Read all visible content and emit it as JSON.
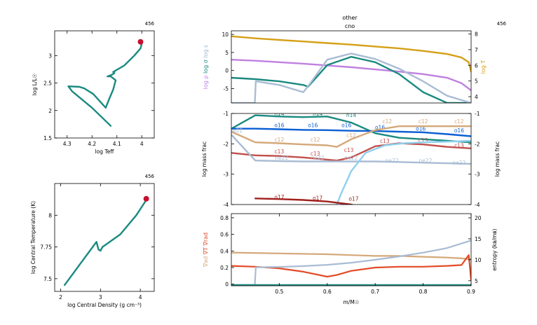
{
  "header": {
    "line1": "other",
    "line2": "cno"
  },
  "chart_data": [
    {
      "id": "hr",
      "type": "line",
      "xlabel": "log Teff",
      "ylabel": "log L/L☉",
      "corner_label": "456",
      "xlim": [
        4.35,
        3.95
      ],
      "ylim": [
        1.5,
        3.45
      ],
      "xticks": [
        4.3,
        4.2,
        4.1,
        4.0
      ],
      "xtick_labels": [
        "4.3",
        "4.2",
        "4.1",
        "4"
      ],
      "yticks": [
        1.5,
        2.0,
        2.5,
        3.0
      ],
      "ytick_labels": [
        "1.5",
        "2",
        "2.5",
        "3"
      ],
      "series": [
        {
          "color": "#1a8a80",
          "x": [
            4.125,
            4.2,
            4.28,
            4.295,
            4.25,
            4.23,
            4.195,
            4.145,
            4.13,
            4.115,
            4.105,
            4.125,
            4.138,
            4.12,
            4.11,
            4.115,
            4.07,
            4.03,
            4.005,
            4.0,
            4.005
          ],
          "y": [
            1.72,
            2.05,
            2.35,
            2.44,
            2.43,
            2.4,
            2.3,
            2.05,
            2.22,
            2.38,
            2.55,
            2.62,
            2.62,
            2.65,
            2.68,
            2.7,
            2.82,
            3.0,
            3.13,
            3.22,
            3.25
          ]
        }
      ],
      "marker": {
        "x": 4.005,
        "y": 3.25,
        "color": "#c8102e"
      }
    },
    {
      "id": "center",
      "type": "line",
      "xlabel": "log Central Density (g cm⁻³)",
      "ylabel": "log Central Temperature (K)",
      "corner_label": "456",
      "xlim": [
        1.85,
        4.35
      ],
      "ylim": [
        7.4,
        8.25
      ],
      "xticks": [
        2,
        3,
        4
      ],
      "xtick_labels": [
        "2",
        "3",
        "4"
      ],
      "yticks": [
        7.5,
        7.75,
        8.0
      ],
      "ytick_labels": [
        "7.5",
        "7.75",
        "8"
      ],
      "series": [
        {
          "color": "#1a8a80",
          "x": [
            2.1,
            2.5,
            2.9,
            2.95,
            3.0,
            3.05,
            3.5,
            3.9,
            4.15
          ],
          "y": [
            7.45,
            7.62,
            7.79,
            7.73,
            7.72,
            7.75,
            7.85,
            8.0,
            8.12
          ]
        }
      ],
      "marker": {
        "x": 4.15,
        "y": 8.13,
        "color": "#c8102e"
      }
    },
    {
      "id": "top",
      "type": "line",
      "corner_label": "456",
      "xlim": [
        0.4,
        0.9
      ],
      "ylim": [
        -9,
        11
      ],
      "yticks": [
        -5,
        0,
        5,
        10
      ],
      "ytick_labels": [
        "-5",
        "0",
        "5",
        "10"
      ],
      "y2lim": [
        3.6,
        8.2
      ],
      "y2ticks": [
        4,
        5,
        6,
        7,
        8
      ],
      "y2tick_labels": [
        "4",
        "5",
        "6",
        "7",
        "8"
      ],
      "left_labels": [
        {
          "text": "log ρ",
          "color": "#c080e0"
        },
        {
          "text": "log σ",
          "color": "#1a8a80"
        },
        {
          "text": "log ε",
          "color": "#9fb7d2"
        }
      ],
      "right_label": {
        "text": "log T",
        "color": "#d4a017"
      },
      "series": [
        {
          "name": "log T",
          "axis": "y2",
          "color": "#d4a017",
          "x": [
            0.4,
            0.45,
            0.5,
            0.55,
            0.6,
            0.65,
            0.7,
            0.75,
            0.8,
            0.85,
            0.88,
            0.895,
            0.9
          ],
          "y": [
            7.85,
            7.72,
            7.62,
            7.52,
            7.42,
            7.32,
            7.2,
            7.08,
            6.92,
            6.72,
            6.5,
            6.2,
            5.6
          ]
        },
        {
          "name": "log rho",
          "axis": "y",
          "color": "#c080e0",
          "x": [
            0.4,
            0.45,
            0.5,
            0.55,
            0.6,
            0.65,
            0.7,
            0.75,
            0.8,
            0.85,
            0.88,
            0.9
          ],
          "y": [
            3.0,
            2.7,
            2.3,
            1.9,
            1.4,
            0.9,
            0.3,
            -0.3,
            -1.0,
            -2.0,
            -3.5,
            -5.5
          ]
        },
        {
          "name": "log sigma",
          "axis": "y",
          "color": "#1a8a80",
          "x": [
            0.4,
            0.45,
            0.5,
            0.55,
            0.56,
            0.6,
            0.65,
            0.7,
            0.75,
            0.8,
            0.85,
            0.9
          ],
          "y": [
            -2.0,
            -2.4,
            -3.0,
            -4.0,
            -4.5,
            1.5,
            3.8,
            2.3,
            -1.0,
            -6.0,
            -9.0,
            -9.0
          ]
        },
        {
          "name": "log eps",
          "axis": "y",
          "color": "#a9bcd4",
          "x": [
            0.4,
            0.449,
            0.451,
            0.5,
            0.55,
            0.562,
            0.6,
            0.65,
            0.7,
            0.75,
            0.8,
            0.85,
            0.9
          ],
          "y": [
            -9.0,
            -9.0,
            -3.0,
            -4.0,
            -6.0,
            -4.0,
            3.0,
            4.7,
            3.2,
            0.5,
            -3.0,
            -7.0,
            -9.0
          ]
        }
      ]
    },
    {
      "id": "mid",
      "type": "line",
      "xlim": [
        0.4,
        0.9
      ],
      "ylim": [
        -4,
        -1
      ],
      "yticks": [
        -4,
        -3,
        -2,
        -1
      ],
      "ytick_labels": [
        "-4",
        "-3",
        "-2",
        "-1"
      ],
      "ylabel": "log mass frac",
      "y2label": "log mass frac",
      "series": [
        {
          "name": "n14",
          "color": "#1a8a80",
          "x": [
            0.4,
            0.45,
            0.5,
            0.55,
            0.6,
            0.65,
            0.7,
            0.75,
            0.8,
            0.85,
            0.9
          ],
          "y": [
            -1.5,
            -1.06,
            -1.1,
            -1.12,
            -1.1,
            -1.3,
            -1.65,
            -1.8,
            -1.85,
            -1.9,
            -1.95
          ],
          "labels": [
            {
              "text": "n14",
              "x": 0.5,
              "y": -1.0
            },
            {
              "text": "n14",
              "x": 0.58,
              "y": -1.0
            },
            {
              "text": "n14",
              "x": 0.65,
              "y": -1.05
            }
          ]
        },
        {
          "name": "o16",
          "color": "#0a5fd4",
          "x": [
            0.4,
            0.45,
            0.5,
            0.55,
            0.6,
            0.65,
            0.7,
            0.75,
            0.8,
            0.85,
            0.9
          ],
          "y": [
            -1.5,
            -1.5,
            -1.52,
            -1.54,
            -1.55,
            -1.57,
            -1.58,
            -1.6,
            -1.62,
            -1.68,
            -1.75
          ],
          "labels": [
            {
              "text": "o16",
              "x": 0.5,
              "y": -1.38
            },
            {
              "text": "o16",
              "x": 0.57,
              "y": -1.38
            },
            {
              "text": "o16",
              "x": 0.64,
              "y": -1.38
            },
            {
              "text": "o16",
              "x": 0.71,
              "y": -1.45
            },
            {
              "text": "o16",
              "x": 0.795,
              "y": -1.5
            },
            {
              "text": "o16",
              "x": 0.875,
              "y": -1.55
            }
          ]
        },
        {
          "name": "c12",
          "color": "#d4a87a",
          "x": [
            0.4,
            0.45,
            0.5,
            0.55,
            0.6,
            0.62,
            0.65,
            0.7,
            0.75,
            0.8,
            0.85,
            0.9
          ],
          "y": [
            -1.6,
            -1.95,
            -1.98,
            -2.02,
            -2.05,
            -2.1,
            -1.85,
            -1.55,
            -1.42,
            -1.42,
            -1.42,
            -1.42
          ],
          "labels": [
            {
              "text": "c12",
              "x": 0.5,
              "y": -1.85
            },
            {
              "text": "c12",
              "x": 0.575,
              "y": -1.85
            },
            {
              "text": "c12",
              "x": 0.65,
              "y": -1.72
            },
            {
              "text": "c12",
              "x": 0.725,
              "y": -1.25
            },
            {
              "text": "c12",
              "x": 0.8,
              "y": -1.25
            },
            {
              "text": "c12",
              "x": 0.875,
              "y": -1.25
            }
          ]
        },
        {
          "name": "c13",
          "color": "#c0504d",
          "x": [
            0.4,
            0.45,
            0.5,
            0.55,
            0.6,
            0.62,
            0.65,
            0.7,
            0.75,
            0.8,
            0.85,
            0.9
          ],
          "y": [
            -2.3,
            -2.38,
            -2.4,
            -2.45,
            -2.52,
            -2.55,
            -2.45,
            -2.08,
            -1.98,
            -2.02,
            -2.1,
            -2.15
          ],
          "labels": [
            {
              "text": "c13",
              "x": 0.5,
              "y": -2.25
            },
            {
              "text": "c13",
              "x": 0.575,
              "y": -2.32
            },
            {
              "text": "c13",
              "x": 0.645,
              "y": -2.2
            },
            {
              "text": "c13",
              "x": 0.72,
              "y": -1.9
            },
            {
              "text": "c13",
              "x": 0.8,
              "y": -1.88
            },
            {
              "text": "c13",
              "x": 0.875,
              "y": -2.05
            }
          ]
        },
        {
          "name": "ne22",
          "color": "#a9bcd4",
          "x": [
            0.4,
            0.45,
            0.5,
            0.55,
            0.6,
            0.65,
            0.7,
            0.75,
            0.8,
            0.85,
            0.9
          ],
          "y": [
            -1.7,
            -2.55,
            -2.57,
            -2.58,
            -2.58,
            -2.58,
            -2.58,
            -2.6,
            -2.62,
            -2.64,
            -2.66
          ],
          "labels": [
            {
              "text": "ne22",
              "x": 0.41,
              "y": -1.55
            },
            {
              "text": "ne22",
              "x": 0.505,
              "y": -2.45
            },
            {
              "text": "ne22",
              "x": 0.58,
              "y": -2.45
            },
            {
              "text": "ne22",
              "x": 0.65,
              "y": -2.45
            },
            {
              "text": "ne22",
              "x": 0.735,
              "y": -2.55
            },
            {
              "text": "ne22",
              "x": 0.805,
              "y": -2.55
            },
            {
              "text": "ne22",
              "x": 0.875,
              "y": -2.62
            }
          ]
        },
        {
          "name": "he3",
          "color": "#8fd0ee",
          "x": [
            0.62,
            0.63,
            0.65,
            0.68,
            0.72,
            0.76,
            0.8,
            0.85,
            0.9
          ],
          "y": [
            -4.0,
            -3.6,
            -2.9,
            -2.3,
            -2.05,
            -1.98,
            -1.95,
            -1.93,
            -1.9
          ],
          "labels": []
        },
        {
          "name": "o17",
          "color": "#a0201c",
          "x": [
            0.45,
            0.5,
            0.55,
            0.6,
            0.65,
            0.7,
            0.75,
            0.8,
            0.85,
            0.9
          ],
          "y": [
            -3.8,
            -3.82,
            -3.85,
            -3.9,
            -4.0,
            -4.2,
            -4.5,
            -4.5,
            -4.5,
            -4.5
          ],
          "labels": [
            {
              "text": "o17",
              "x": 0.5,
              "y": -3.75
            },
            {
              "text": "o17",
              "x": 0.58,
              "y": -3.78
            },
            {
              "text": "o17",
              "x": 0.655,
              "y": -3.8
            }
          ]
        }
      ]
    },
    {
      "id": "bottom",
      "type": "line",
      "xlim": [
        0.4,
        0.9
      ],
      "ylim": [
        -0.02,
        0.85
      ],
      "xticks": [
        0.5,
        0.6,
        0.7,
        0.8,
        0.9
      ],
      "xtick_labels": [
        "0.5",
        "0.6",
        "0.7",
        "0.8",
        "0.9"
      ],
      "yticks": [
        0,
        0.2,
        0.4,
        0.6,
        0.8
      ],
      "ytick_labels": [
        "0",
        "0.2",
        "0.4",
        "0.6",
        "0.8"
      ],
      "y2lim": [
        3.8,
        21
      ],
      "y2ticks": [
        5,
        10,
        15,
        20
      ],
      "y2tick_labels": [
        "5",
        "10",
        "15",
        "20"
      ],
      "xlabel": "m/M☉",
      "y2label": "entropy (kʙ/mʙ)",
      "left_labels": [
        {
          "text": "∇ad",
          "color": "#d4a87a"
        },
        {
          "text": "∇T",
          "color": "#e34a26"
        },
        {
          "text": "∇rad",
          "color": "#e34a26"
        }
      ],
      "series": [
        {
          "name": "grad_ad",
          "color": "#d4a87a",
          "x": [
            0.4,
            0.5,
            0.6,
            0.65,
            0.7,
            0.75,
            0.8,
            0.85,
            0.88,
            0.9
          ],
          "y": [
            0.38,
            0.37,
            0.36,
            0.35,
            0.34,
            0.34,
            0.33,
            0.32,
            0.31,
            0.3
          ]
        },
        {
          "name": "grad_rad",
          "color": "#e34a26",
          "x": [
            0.4,
            0.45,
            0.5,
            0.55,
            0.6,
            0.62,
            0.65,
            0.7,
            0.75,
            0.8,
            0.85,
            0.88,
            0.895,
            0.9
          ],
          "y": [
            0.22,
            0.21,
            0.19,
            0.15,
            0.09,
            0.11,
            0.16,
            0.2,
            0.21,
            0.21,
            0.22,
            0.23,
            0.35,
            0.05
          ]
        },
        {
          "name": "entropy",
          "color": "#a9bcd4",
          "axis": "y2",
          "x": [
            0.4,
            0.449,
            0.451,
            0.5,
            0.55,
            0.6,
            0.65,
            0.7,
            0.75,
            0.8,
            0.85,
            0.9
          ],
          "y": [
            4.0,
            4.0,
            8.2,
            8.3,
            8.5,
            8.8,
            9.3,
            10.0,
            10.8,
            11.7,
            12.8,
            14.6
          ]
        },
        {
          "name": "grad_T_base",
          "color": "#1a8a80",
          "x": [
            0.4,
            0.9
          ],
          "y": [
            -0.01,
            -0.01
          ]
        }
      ]
    }
  ]
}
